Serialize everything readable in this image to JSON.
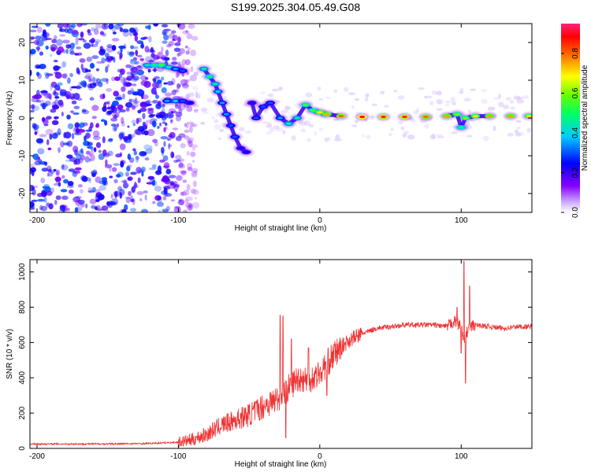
{
  "title": "S199.2025.304.05.49.G08",
  "spectrogram": {
    "type": "heatmap",
    "xlabel": "Height of straight line (km)",
    "ylabel": "Frequency (Hz)",
    "xlim": [
      -205,
      150
    ],
    "ylim": [
      -25,
      25
    ],
    "xticks": [
      -200,
      -100,
      0,
      100
    ],
    "yticks": [
      -20,
      -10,
      0,
      10,
      20
    ],
    "colorbar": {
      "label": "Normalized spectral amplitude",
      "range": [
        0.0,
        0.95
      ],
      "ticks": [
        "0.0",
        "0.2",
        "0.4",
        "0.6",
        "0.8"
      ],
      "tick_values": [
        0.0,
        0.2,
        0.4,
        0.6,
        0.8
      ]
    },
    "noise_region_x": [
      -205,
      -95
    ],
    "signal_track": [
      {
        "x": -122,
        "f": 14,
        "a": 0.45
      },
      {
        "x": -117,
        "f": 14,
        "a": 0.5
      },
      {
        "x": -112,
        "f": 14,
        "a": 0.55
      },
      {
        "x": -107,
        "f": 13.5,
        "a": 0.45
      },
      {
        "x": -102,
        "f": 13,
        "a": 0.35
      },
      {
        "x": -97,
        "f": 12.5,
        "a": 0.3
      },
      {
        "x": -108,
        "f": 4.5,
        "a": 0.35
      },
      {
        "x": -102,
        "f": 4.5,
        "a": 0.4
      },
      {
        "x": -97,
        "f": 4.5,
        "a": 0.3
      },
      {
        "x": -92,
        "f": 4,
        "a": 0.25
      },
      {
        "x": -82,
        "f": 13,
        "a": 0.45
      },
      {
        "x": -78,
        "f": 11,
        "a": 0.5
      },
      {
        "x": -74,
        "f": 9,
        "a": 0.45
      },
      {
        "x": -72,
        "f": 7,
        "a": 0.4
      },
      {
        "x": -69,
        "f": 4,
        "a": 0.35
      },
      {
        "x": -66,
        "f": 1,
        "a": 0.35
      },
      {
        "x": -63,
        "f": -2,
        "a": 0.3
      },
      {
        "x": -60,
        "f": -5,
        "a": 0.3
      },
      {
        "x": -56,
        "f": -8,
        "a": 0.25
      },
      {
        "x": -52,
        "f": -9,
        "a": 0.25
      },
      {
        "x": -48,
        "f": 4,
        "a": 0.25
      },
      {
        "x": -45,
        "f": 0,
        "a": 0.3
      },
      {
        "x": -40,
        "f": 3,
        "a": 0.3
      },
      {
        "x": -35,
        "f": 4,
        "a": 0.3
      },
      {
        "x": -28,
        "f": 0,
        "a": 0.35
      },
      {
        "x": -22,
        "f": -1.5,
        "a": 0.45
      },
      {
        "x": -16,
        "f": 0,
        "a": 0.45
      },
      {
        "x": -10,
        "f": 3.5,
        "a": 0.55
      },
      {
        "x": -5,
        "f": 2,
        "a": 0.55
      },
      {
        "x": 0,
        "f": 1.5,
        "a": 0.7
      },
      {
        "x": 5,
        "f": 1,
        "a": 0.75
      },
      {
        "x": 15,
        "f": 0.5,
        "a": 0.8
      },
      {
        "x": 30,
        "f": 0.3,
        "a": 0.9
      },
      {
        "x": 45,
        "f": 0.3,
        "a": 0.85
      },
      {
        "x": 60,
        "f": 0.3,
        "a": 0.85
      },
      {
        "x": 75,
        "f": 0.3,
        "a": 0.8
      },
      {
        "x": 90,
        "f": 0.5,
        "a": 0.75
      },
      {
        "x": 97,
        "f": 1,
        "a": 0.6
      },
      {
        "x": 100,
        "f": -2.5,
        "a": 0.5
      },
      {
        "x": 103,
        "f": 0,
        "a": 0.6
      },
      {
        "x": 110,
        "f": 0.5,
        "a": 0.7
      },
      {
        "x": 120,
        "f": 0.5,
        "a": 0.75
      },
      {
        "x": 135,
        "f": 0.5,
        "a": 0.75
      },
      {
        "x": 148,
        "f": 0.5,
        "a": 0.7
      }
    ]
  },
  "snr_chart": {
    "type": "line",
    "xlabel": "Height of straight line (km)",
    "ylabel": "SNR (10 * v/v)",
    "xlim": [
      -205,
      150
    ],
    "ylim": [
      0,
      1070
    ],
    "xticks": [
      -200,
      -100,
      0,
      100
    ],
    "yticks": [
      0,
      200,
      400,
      600,
      800,
      1000
    ],
    "color": "#ee3333",
    "series_name": "SNR",
    "x": [
      -205,
      -180,
      -150,
      -120,
      -100,
      -90,
      -80,
      -70,
      -60,
      -50,
      -40,
      -30,
      -25,
      -20,
      -15,
      -10,
      -5,
      0,
      5,
      10,
      20,
      30,
      40,
      50,
      60,
      70,
      80,
      90,
      95,
      100,
      102,
      105,
      110,
      120,
      130,
      140,
      150
    ],
    "y": [
      25,
      25,
      25,
      28,
      35,
      50,
      80,
      130,
      160,
      190,
      240,
      280,
      320,
      360,
      400,
      390,
      400,
      430,
      480,
      530,
      610,
      650,
      680,
      690,
      700,
      700,
      700,
      690,
      720,
      690,
      600,
      680,
      700,
      690,
      680,
      690,
      690
    ],
    "spikes": [
      {
        "x": -28,
        "y": 755
      },
      {
        "x": -26,
        "y": 750
      },
      {
        "x": -24,
        "y": 60
      },
      {
        "x": -20,
        "y": 620
      },
      {
        "x": -8,
        "y": 570
      },
      {
        "x": 2,
        "y": 440
      },
      {
        "x": 5,
        "y": 300
      },
      {
        "x": 97,
        "y": 800
      },
      {
        "x": 100,
        "y": 540
      },
      {
        "x": 102,
        "y": 1060
      },
      {
        "x": 103,
        "y": 370
      },
      {
        "x": 106,
        "y": 920
      }
    ]
  },
  "colors": {
    "axes": "#000000",
    "line": "#ee3333",
    "colormap": [
      "#ffffff",
      "#8800ff",
      "#0000ff",
      "#00ffff",
      "#00ff00",
      "#ffff00",
      "#ff0000",
      "#ff0088"
    ]
  }
}
